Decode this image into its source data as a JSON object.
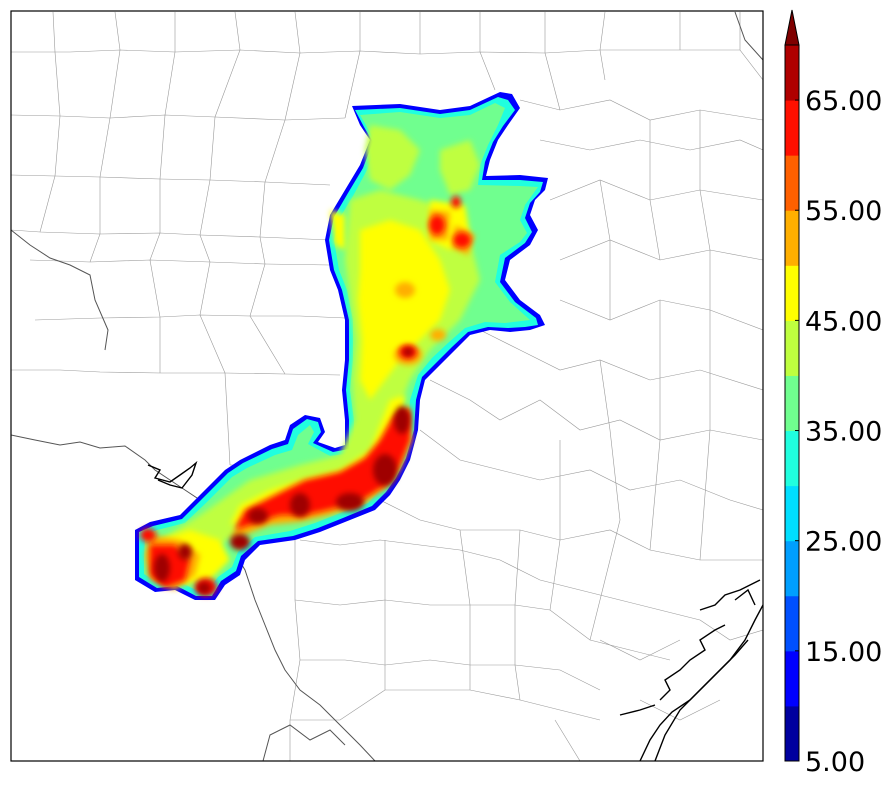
{
  "colorbar": {
    "min": 5,
    "max": 70,
    "step": 5,
    "extend": "max",
    "tick_labels": [
      "5.00",
      "15.00",
      "25.00",
      "35.00",
      "45.00",
      "55.00",
      "65.00"
    ],
    "colors": [
      "#00009f",
      "#0000ff",
      "#0050ff",
      "#009fff",
      "#00dfff",
      "#20ffdf",
      "#70ff8f",
      "#bfff3f",
      "#ffff00",
      "#ffaf00",
      "#ff6000",
      "#ff1000",
      "#af0000"
    ],
    "extend_color": "#7f0000"
  },
  "map": {
    "features": [
      "county-borders",
      "state-border",
      "coastline",
      "precipitation-field"
    ]
  }
}
